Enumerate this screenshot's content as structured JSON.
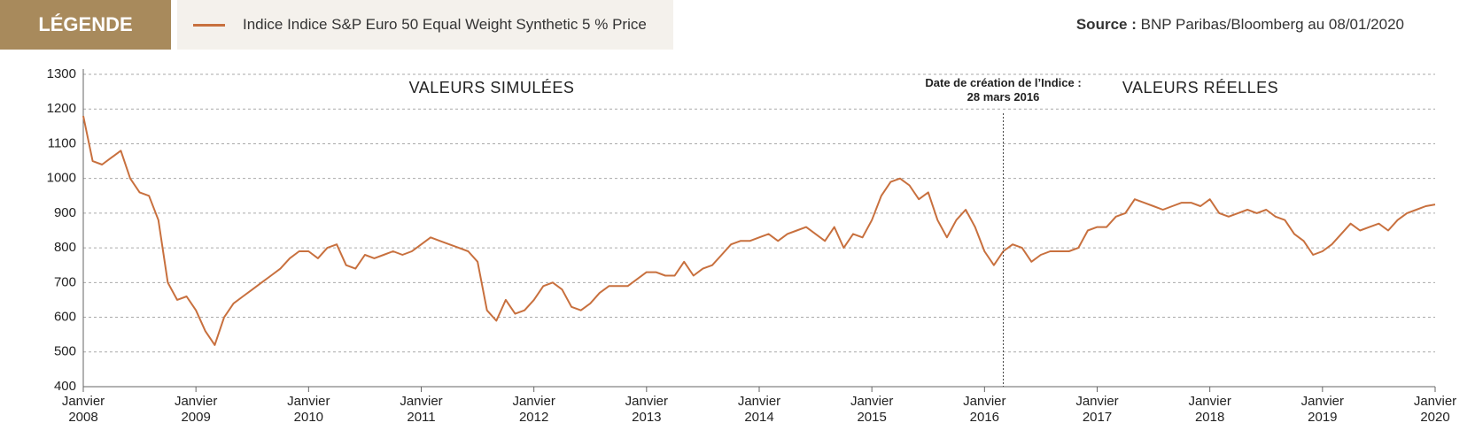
{
  "chart_data": {
    "type": "line",
    "legend_title": "LÉGENDE",
    "source_label": "Source :",
    "source": "BNP Paribas/Bloomberg au 08/01/2020",
    "annotations": [
      {
        "text": "VALEURS SIMULÉES"
      },
      {
        "text": "VALEURS RÉELLES"
      },
      {
        "text": "Date de création de l’Indice :\n28 mars 2016",
        "x": "2016-03"
      }
    ],
    "x": [
      "2008-01",
      "2008-02",
      "2008-03",
      "2008-04",
      "2008-05",
      "2008-06",
      "2008-07",
      "2008-08",
      "2008-09",
      "2008-10",
      "2008-11",
      "2008-12",
      "2009-01",
      "2009-02",
      "2009-03",
      "2009-04",
      "2009-05",
      "2009-06",
      "2009-07",
      "2009-08",
      "2009-09",
      "2009-10",
      "2009-11",
      "2009-12",
      "2010-01",
      "2010-02",
      "2010-03",
      "2010-04",
      "2010-05",
      "2010-06",
      "2010-07",
      "2010-08",
      "2010-09",
      "2010-10",
      "2010-11",
      "2010-12",
      "2011-01",
      "2011-02",
      "2011-03",
      "2011-04",
      "2011-05",
      "2011-06",
      "2011-07",
      "2011-08",
      "2011-09",
      "2011-10",
      "2011-11",
      "2011-12",
      "2012-01",
      "2012-02",
      "2012-03",
      "2012-04",
      "2012-05",
      "2012-06",
      "2012-07",
      "2012-08",
      "2012-09",
      "2012-10",
      "2012-11",
      "2012-12",
      "2013-01",
      "2013-02",
      "2013-03",
      "2013-04",
      "2013-05",
      "2013-06",
      "2013-07",
      "2013-08",
      "2013-09",
      "2013-10",
      "2013-11",
      "2013-12",
      "2014-01",
      "2014-02",
      "2014-03",
      "2014-04",
      "2014-05",
      "2014-06",
      "2014-07",
      "2014-08",
      "2014-09",
      "2014-10",
      "2014-11",
      "2014-12",
      "2015-01",
      "2015-02",
      "2015-03",
      "2015-04",
      "2015-05",
      "2015-06",
      "2015-07",
      "2015-08",
      "2015-09",
      "2015-10",
      "2015-11",
      "2015-12",
      "2016-01",
      "2016-02",
      "2016-03",
      "2016-04",
      "2016-05",
      "2016-06",
      "2016-07",
      "2016-08",
      "2016-09",
      "2016-10",
      "2016-11",
      "2016-12",
      "2017-01",
      "2017-02",
      "2017-03",
      "2017-04",
      "2017-05",
      "2017-06",
      "2017-07",
      "2017-08",
      "2017-09",
      "2017-10",
      "2017-11",
      "2017-12",
      "2018-01",
      "2018-02",
      "2018-03",
      "2018-04",
      "2018-05",
      "2018-06",
      "2018-07",
      "2018-08",
      "2018-09",
      "2018-10",
      "2018-11",
      "2018-12",
      "2019-01",
      "2019-02",
      "2019-03",
      "2019-04",
      "2019-05",
      "2019-06",
      "2019-07",
      "2019-08",
      "2019-09",
      "2019-10",
      "2019-11",
      "2019-12",
      "2020-01"
    ],
    "series": [
      {
        "name": "Indice Indice S&P Euro 50 Equal Weight Synthetic 5 % Price",
        "color": "#c8703e",
        "values": [
          1180,
          1050,
          1040,
          1060,
          1080,
          1000,
          960,
          950,
          880,
          700,
          650,
          660,
          620,
          560,
          520,
          600,
          640,
          660,
          680,
          700,
          720,
          740,
          770,
          790,
          790,
          770,
          800,
          810,
          750,
          740,
          780,
          770,
          780,
          790,
          780,
          790,
          810,
          830,
          820,
          810,
          800,
          790,
          760,
          620,
          590,
          650,
          610,
          620,
          650,
          690,
          700,
          680,
          630,
          620,
          640,
          670,
          690,
          690,
          690,
          710,
          730,
          730,
          720,
          720,
          760,
          720,
          740,
          750,
          780,
          810,
          820,
          820,
          830,
          840,
          820,
          840,
          850,
          860,
          840,
          820,
          860,
          800,
          840,
          830,
          880,
          950,
          990,
          1000,
          980,
          940,
          960,
          880,
          830,
          880,
          910,
          860,
          790,
          750,
          790,
          810,
          800,
          760,
          780,
          790,
          790,
          790,
          800,
          850,
          860,
          860,
          890,
          900,
          940,
          930,
          920,
          910,
          920,
          930,
          930,
          920,
          940,
          900,
          890,
          900,
          910,
          900,
          910,
          890,
          880,
          840,
          820,
          780,
          790,
          810,
          840,
          870,
          850,
          860,
          870,
          850,
          880,
          900,
          910,
          920,
          925
        ]
      }
    ],
    "xlim": [
      "2008-01",
      "2020-01"
    ],
    "xticks": [
      {
        "value": "2008-01",
        "label": "Janvier\n2008"
      },
      {
        "value": "2009-01",
        "label": "Janvier\n2009"
      },
      {
        "value": "2010-01",
        "label": "Janvier\n2010"
      },
      {
        "value": "2011-01",
        "label": "Janvier\n2011"
      },
      {
        "value": "2012-01",
        "label": "Janvier\n2012"
      },
      {
        "value": "2013-01",
        "label": "Janvier\n2013"
      },
      {
        "value": "2014-01",
        "label": "Janvier\n2014"
      },
      {
        "value": "2015-01",
        "label": "Janvier\n2015"
      },
      {
        "value": "2016-01",
        "label": "Janvier\n2016"
      },
      {
        "value": "2017-01",
        "label": "Janvier\n2017"
      },
      {
        "value": "2018-01",
        "label": "Janvier\n2018"
      },
      {
        "value": "2019-01",
        "label": "Janvier\n2019"
      },
      {
        "value": "2020-01",
        "label": "Janvier\n2020"
      }
    ],
    "ylim": [
      400,
      1300
    ],
    "yticks": [
      400,
      500,
      600,
      700,
      800,
      900,
      1000,
      1100,
      1200,
      1300
    ],
    "grid": true
  }
}
